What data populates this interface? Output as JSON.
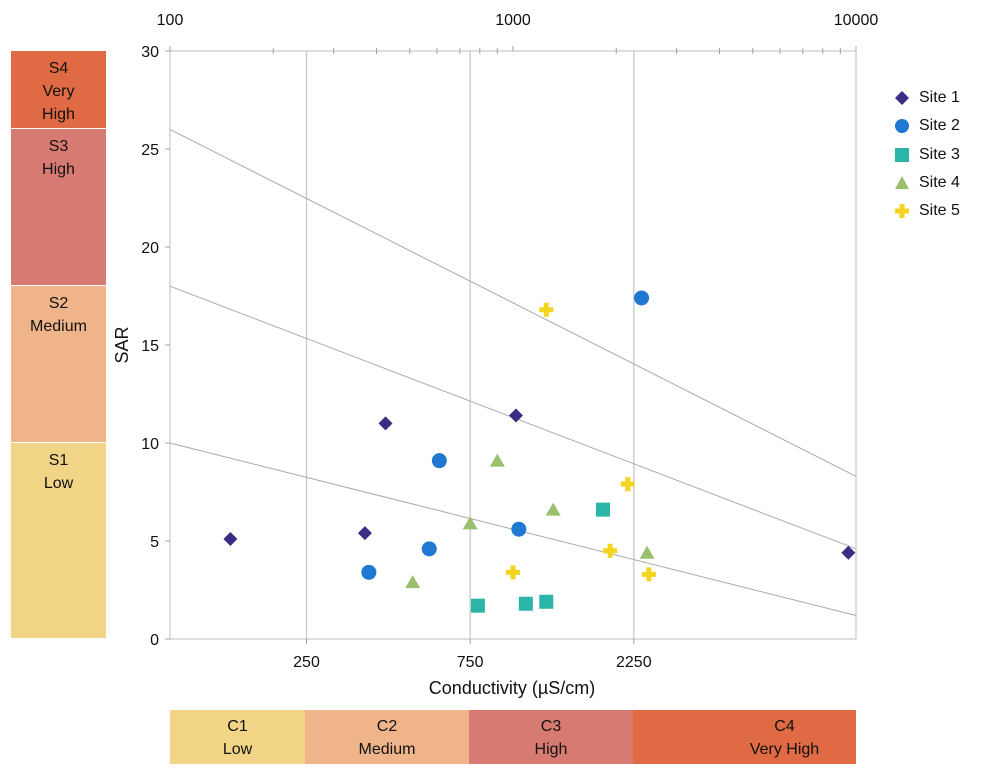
{
  "chart_data": {
    "type": "scatter",
    "xlabel": "Conductivity (µS/cm)",
    "ylabel": "SAR",
    "x_scale": "log",
    "xlim": [
      100,
      10000
    ],
    "ylim": [
      0,
      30
    ],
    "x_ticks_top": [
      "100",
      "1000",
      "10000"
    ],
    "x_ticks_bottom": [
      "250",
      "750",
      "2250"
    ],
    "y_ticks": [
      "0",
      "5",
      "10",
      "15",
      "20",
      "25",
      "30"
    ],
    "vertical_lines_x": [
      250,
      750,
      2250
    ],
    "boundary_lines": [
      {
        "x1": 100,
        "y1": 10.0,
        "x2": 10000,
        "y2": 1.2
      },
      {
        "x1": 100,
        "y1": 18.0,
        "x2": 10000,
        "y2": 4.6
      },
      {
        "x1": 100,
        "y1": 26.0,
        "x2": 10000,
        "y2": 8.3
      }
    ],
    "series": [
      {
        "name": "Site 1",
        "marker": "diamond",
        "color": "#3a2d83",
        "points": [
          [
            150,
            5.1
          ],
          [
            370,
            5.4
          ],
          [
            425,
            11.0
          ],
          [
            1020,
            11.4
          ],
          [
            9500,
            4.4
          ]
        ]
      },
      {
        "name": "Site 2",
        "marker": "circle",
        "color": "#1f78d1",
        "points": [
          [
            380,
            3.4
          ],
          [
            570,
            4.6
          ],
          [
            610,
            9.1
          ],
          [
            1040,
            5.6
          ],
          [
            2370,
            17.4
          ]
        ]
      },
      {
        "name": "Site 3",
        "marker": "square",
        "color": "#2bb5a8",
        "points": [
          [
            790,
            1.7
          ],
          [
            1090,
            1.8
          ],
          [
            1250,
            1.9
          ],
          [
            1830,
            6.6
          ]
        ]
      },
      {
        "name": "Site 4",
        "marker": "triangle",
        "color": "#9bbf6e",
        "points": [
          [
            510,
            2.9
          ],
          [
            750,
            5.9
          ],
          [
            900,
            9.1
          ],
          [
            1310,
            6.6
          ],
          [
            2460,
            4.4
          ]
        ]
      },
      {
        "name": "Site 5",
        "marker": "plus",
        "color": "#f5d41f",
        "points": [
          [
            1000,
            3.4
          ],
          [
            1250,
            16.8
          ],
          [
            1920,
            4.5
          ],
          [
            2160,
            7.9
          ],
          [
            2490,
            3.3
          ]
        ]
      }
    ]
  },
  "salinity_classes": [
    {
      "label": "C1\nLow",
      "color": "#f2d487"
    },
    {
      "label": "C2\nMedium",
      "color": "#efb48a"
    },
    {
      "label": "C3\nHigh",
      "color": "#d77b72"
    },
    {
      "label": "C4\nVery High",
      "color": "#df6a43"
    }
  ],
  "sodium_classes": [
    {
      "label": "S4\nVery\nHigh",
      "color": "#df6a43"
    },
    {
      "label": "S3\nHigh",
      "color": "#d77b72"
    },
    {
      "label": "S2\nMedium",
      "color": "#efb48a"
    },
    {
      "label": "S1\nLow",
      "color": "#f2d487"
    }
  ]
}
